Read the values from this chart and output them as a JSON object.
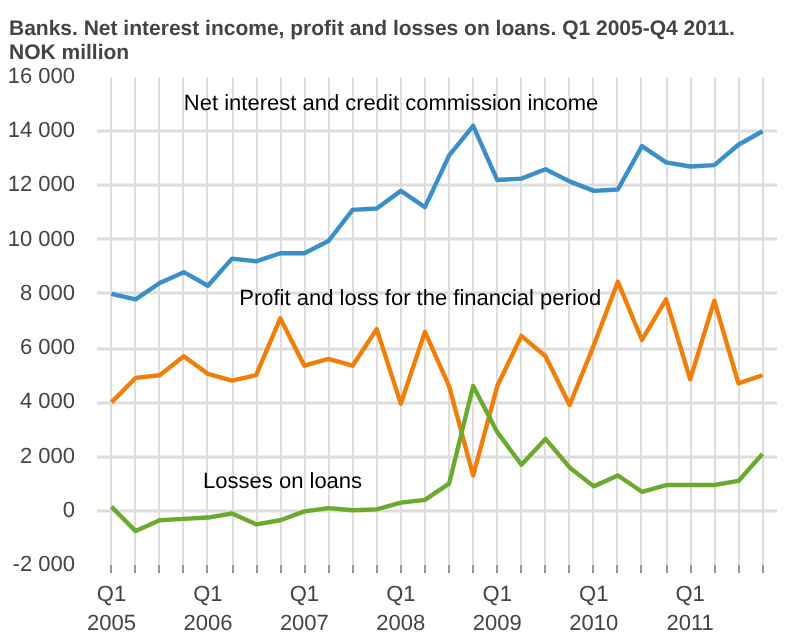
{
  "chart_data": {
    "type": "line",
    "title": "Banks. Net interest income, profit and losses on loans. Q1 2005-Q4 2011.\nNOK million",
    "categories": [
      "Q1\n2005",
      null,
      null,
      null,
      "Q1\n2006",
      null,
      null,
      null,
      "Q1\n2007",
      null,
      null,
      null,
      "Q1\n2008",
      null,
      null,
      null,
      "Q1\n2009",
      null,
      null,
      null,
      "Q1\n2010",
      null,
      null,
      null,
      "Q1\n2011",
      null,
      null,
      null
    ],
    "series": [
      {
        "name": "Net interest and credit commission income",
        "color": "#3a8fc8",
        "values": [
          8000,
          7800,
          8400,
          8800,
          8300,
          9300,
          9200,
          9500,
          9500,
          9950,
          11100,
          11150,
          11800,
          11200,
          13100,
          14200,
          12200,
          12250,
          12600,
          12150,
          11800,
          11850,
          13450,
          12850,
          12700,
          12750,
          13500,
          14000
        ]
      },
      {
        "name": "Profit and loss for the financial period",
        "color": "#f07f09",
        "values": [
          4000,
          4900,
          5000,
          5700,
          5050,
          4800,
          5000,
          7100,
          5350,
          5600,
          5350,
          6700,
          3950,
          6600,
          4600,
          1300,
          4600,
          6450,
          5700,
          3900,
          6100,
          8450,
          6300,
          7800,
          4850,
          7750,
          4700,
          5000
        ]
      },
      {
        "name": "Losses on loans",
        "color": "#6aaa2e",
        "values": [
          150,
          -750,
          -350,
          -300,
          -250,
          -100,
          -500,
          -350,
          -20,
          100,
          20,
          50,
          300,
          400,
          1000,
          4600,
          2900,
          1700,
          2650,
          1600,
          900,
          1300,
          700,
          950,
          950,
          950,
          1100,
          2100
        ]
      }
    ],
    "ylim": [
      -2000,
      16000
    ],
    "yticks": [
      {
        "value": -2000,
        "label": "-2 000"
      },
      {
        "value": 0,
        "label": "0"
      },
      {
        "value": 2000,
        "label": "2 000"
      },
      {
        "value": 4000,
        "label": "4 000"
      },
      {
        "value": 6000,
        "label": "6 000"
      },
      {
        "value": 8000,
        "label": "8 000"
      },
      {
        "value": 10000,
        "label": "10 000"
      },
      {
        "value": 12000,
        "label": "12 000"
      },
      {
        "value": 14000,
        "label": "14 000"
      },
      {
        "value": 16000,
        "label": "16 000"
      }
    ],
    "grid": true,
    "legend": false,
    "marker": "none",
    "line_style": "solid"
  }
}
